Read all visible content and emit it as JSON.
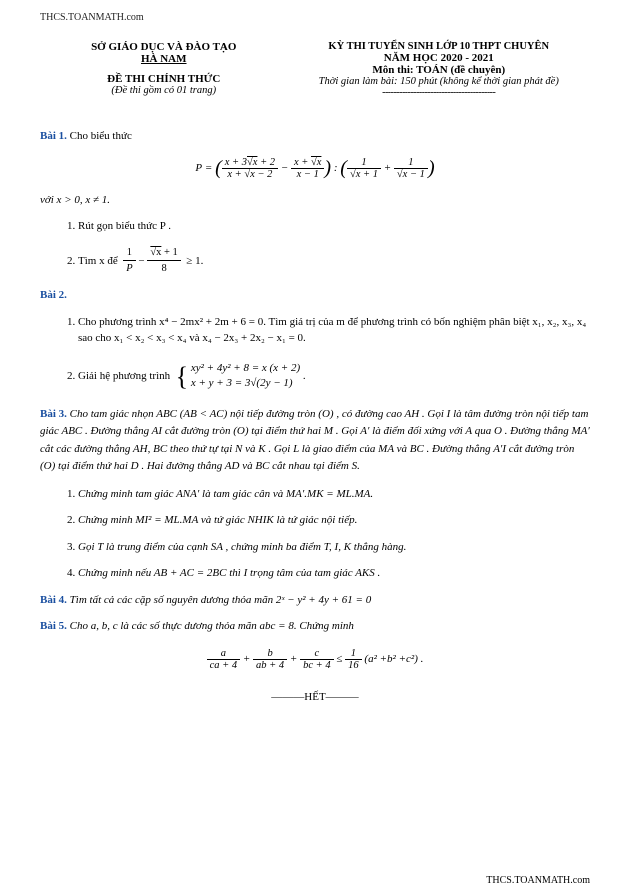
{
  "colors": {
    "bai": "#1a4fa0",
    "text": "#000000",
    "bg": "#ffffff"
  },
  "url": "THCS.TOANMATH.com",
  "header": {
    "left": {
      "line1": "SỞ GIÁO DỤC VÀ ĐÀO TẠO",
      "line2": "HÀ NAM",
      "official": "ĐỀ THI CHÍNH THỨC",
      "pages": "(Đề thi gồm có 01 trang)"
    },
    "right": {
      "line1": "KỲ THI TUYỂN SINH LỚP 10 THPT CHUYÊN",
      "line2": "NĂM HỌC 2020 - 2021",
      "line3": "Môn thi: TOÁN (đề chuyên)",
      "line4": "Thời gian làm bài: 150 phút (không kể thời gian phát đề)",
      "dashes": "----------------------------------------"
    }
  },
  "bai1": {
    "label": "Bài 1.",
    "intro": "Cho biểu thức",
    "condition": "với x > 0, x ≠ 1.",
    "item1": "Rút gọn biểu thức P .",
    "item2_prefix": "Tìm x để",
    "item2_suffix": "≥ 1."
  },
  "bai2": {
    "label": "Bài 2.",
    "item1": "Cho phương trình x⁴ − 2mx² + 2m + 6 = 0. Tìm giá trị của m để phương trình có bốn nghiệm phân biệt x₁, x₂, x₃, x₄ sao cho x₁ < x₂ < x₃ < x₄ và x₄ − 2x₃ + 2x₂ − x₁ = 0.",
    "item2_prefix": "Giải hệ phương trình",
    "sys1": "xy² + 4y² + 8 = x (x + 2)",
    "sys2": "x + y + 3 = 3√(2y − 1)"
  },
  "bai3": {
    "label": "Bài 3.",
    "text": "Cho tam giác nhọn ABC (AB < AC) nội tiếp đường tròn (O) , có đường cao AH . Gọi I là tâm đường tròn nội tiếp tam giác ABC . Đường thẳng AI cắt đường tròn (O) tại điểm thứ hai M . Gọi A′ là điểm đối xứng với A qua O . Đường thẳng MA′ cắt các đường thẳng AH, BC theo thứ tự tại N và K . Gọi L là giao điểm của MA và BC . Đường thẳng A′I cắt đường tròn (O) tại điểm thứ hai D . Hai đường thẳng AD và BC cắt nhau tại điểm S.",
    "item1": "Chứng minh tam giác ANA′ là tam giác cân và MA′.MK = ML.MA.",
    "item2": "Chứng minh MI² = ML.MA và tứ giác NHIK là tứ giác nội tiếp.",
    "item3": "Gọi T là trung điểm của cạnh SA , chứng minh ba điểm T, I, K thẳng hàng.",
    "item4": "Chứng minh nếu AB + AC = 2BC thì I trọng tâm của tam giác AKS ."
  },
  "bai4": {
    "label": "Bài 4.",
    "text": "Tìm tất cả các cặp số nguyên dương thỏa mãn 2ˣ − y² + 4y + 61 = 0"
  },
  "bai5": {
    "label": "Bài 5.",
    "text": "Cho a, b, c là các số thực dương thỏa mãn abc = 8. Chứng minh"
  },
  "het": "———HẾT———"
}
